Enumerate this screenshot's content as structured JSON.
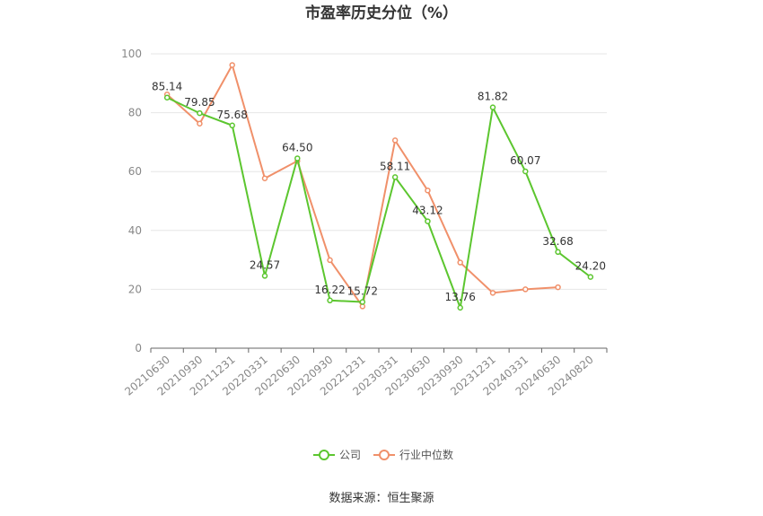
{
  "chart_data": {
    "type": "line",
    "title": "市盈率历史分位（%）",
    "categories": [
      "20210630",
      "20210930",
      "20211231",
      "20220331",
      "20220630",
      "20220930",
      "20221231",
      "20230331",
      "20230630",
      "20230930",
      "20231231",
      "20240331",
      "20240630",
      "20240820"
    ],
    "ylim": [
      0,
      100
    ],
    "yticks": [
      0,
      20,
      40,
      60,
      80,
      100
    ],
    "grid": true,
    "legend_position": "bottom",
    "series": [
      {
        "name": "公司",
        "color": "#5cc62f",
        "values": [
          85.14,
          79.85,
          75.68,
          24.57,
          64.5,
          16.22,
          15.72,
          58.11,
          43.12,
          13.76,
          81.82,
          60.07,
          32.68,
          24.2
        ],
        "labels": [
          "85.14",
          "79.85",
          "75.68",
          "24.57",
          "64.50",
          "16.22",
          "15.72",
          "58.11",
          "43.12",
          "13.76",
          "81.82",
          "60.07",
          "32.68",
          "24.20"
        ]
      },
      {
        "name": "行业中位数",
        "color": "#f0906a",
        "values": [
          86.2,
          76.3,
          96.2,
          57.7,
          63.6,
          29.9,
          14.2,
          70.6,
          53.6,
          29.1,
          18.8,
          20.0,
          20.7,
          null
        ]
      }
    ],
    "source": "数据来源：恒生聚源"
  }
}
